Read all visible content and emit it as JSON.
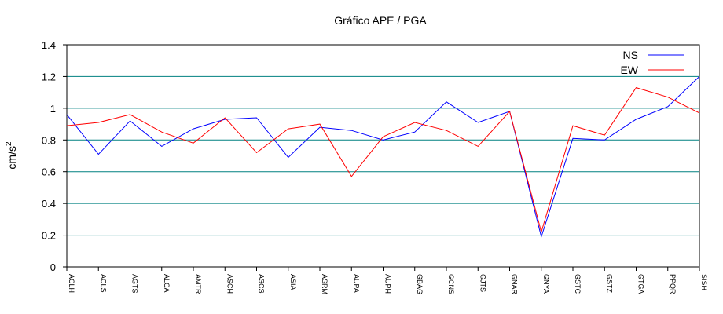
{
  "chart_data": {
    "type": "line",
    "title": "Gráfico  APE / PGA",
    "ylabel": "cm/s",
    "ylabel_superscript": "2",
    "ylim": [
      0,
      1.4
    ],
    "yticks": [
      "0",
      "0.2",
      "0.4",
      "0.6",
      "0.8",
      "1",
      "1.2",
      "1.4"
    ],
    "grid": true,
    "legend_position": "top-right",
    "categories": [
      "ACLH",
      "ACLS",
      "AGTS",
      "ALCA",
      "AMTR",
      "ASCH",
      "ASCS",
      "ASIA",
      "ASRM",
      "AUPA",
      "AUPH",
      "GBAG",
      "GCNS",
      "GJTS",
      "GNAR",
      "GNYA",
      "GSTC",
      "GSTZ",
      "GTGA",
      "PPQR",
      "SISH"
    ],
    "series": [
      {
        "name": "NS",
        "color": "#0000ff",
        "values": [
          0.96,
          0.71,
          0.92,
          0.76,
          0.87,
          0.93,
          0.94,
          0.69,
          0.88,
          0.86,
          0.8,
          0.85,
          1.04,
          0.91,
          0.98,
          0.19,
          0.81,
          0.8,
          0.93,
          1.01,
          1.2
        ]
      },
      {
        "name": "EW",
        "color": "#ff0000",
        "values": [
          0.89,
          0.91,
          0.96,
          0.85,
          0.78,
          0.94,
          0.72,
          0.87,
          0.9,
          0.57,
          0.82,
          0.91,
          0.86,
          0.76,
          0.98,
          0.22,
          0.89,
          0.83,
          1.13,
          1.07,
          0.97
        ]
      }
    ],
    "axis_color": "#000000",
    "grid_color": "#008080"
  }
}
